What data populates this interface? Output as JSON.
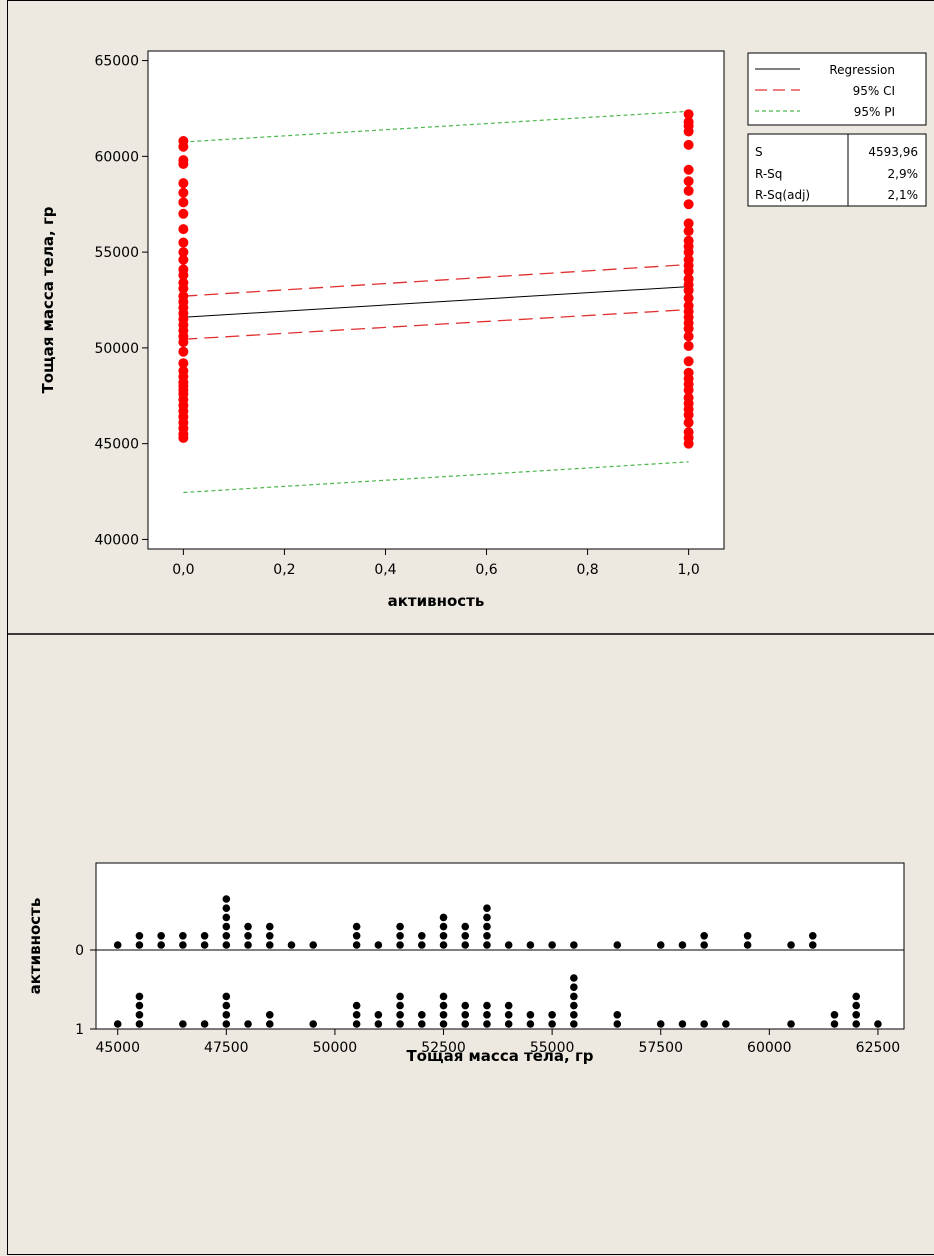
{
  "chart_data": [
    {
      "type": "scatter",
      "title": "",
      "xlabel": "активность",
      "ylabel": "Тощая масса тела, гр",
      "xlim": [
        -0.07,
        1.07
      ],
      "ylim": [
        39500,
        65500
      ],
      "x_ticks": [
        0.0,
        0.2,
        0.4,
        0.6,
        0.8,
        1.0
      ],
      "x_tick_labels": [
        "0,0",
        "0,2",
        "0,4",
        "0,6",
        "0,8",
        "1,0"
      ],
      "y_ticks": [
        40000,
        45000,
        50000,
        55000,
        60000,
        65000
      ],
      "y_tick_labels": [
        "40000",
        "45000",
        "50000",
        "55000",
        "60000",
        "65000"
      ],
      "colors": {
        "points": "#ff0000",
        "regression": "#000000",
        "ci": "#e03030",
        "pi": "#4cb84c"
      },
      "legend": {
        "position": "top-right",
        "entries": [
          {
            "label": "Regression",
            "style": "solid",
            "color": "#000000"
          },
          {
            "label": "95% CI",
            "style": "dashed",
            "color": "#e03030"
          },
          {
            "label": "95% PI",
            "style": "dashed",
            "color": "#4cb84c"
          }
        ]
      },
      "stats": [
        {
          "label": "S",
          "value": "4593,96"
        },
        {
          "label": "R-Sq",
          "value": "2,9%"
        },
        {
          "label": "R-Sq(adj)",
          "value": "2,1%"
        }
      ],
      "lines": {
        "regression": [
          [
            0,
            51600
          ],
          [
            1,
            53200
          ]
        ],
        "ci_upper": [
          [
            0,
            52700
          ],
          [
            1,
            54350
          ]
        ],
        "ci_lower": [
          [
            0,
            50450
          ],
          [
            1,
            52000
          ]
        ],
        "pi_upper": [
          [
            0,
            60750
          ],
          [
            1,
            62350
          ]
        ],
        "pi_lower": [
          [
            0,
            42450
          ],
          [
            1,
            44050
          ]
        ]
      },
      "series": [
        {
          "x": 0,
          "values": [
            45300,
            45500,
            45800,
            46100,
            46400,
            46700,
            47000,
            47300,
            47600,
            47800,
            48000,
            48200,
            48500,
            48800,
            49200,
            49800,
            50300,
            50600,
            50900,
            51200,
            51500,
            51800,
            52100,
            52400,
            52700,
            53100,
            53400,
            53800,
            54100,
            54600,
            55000,
            55500,
            56200,
            57000,
            57600,
            58100,
            58600,
            59600,
            59800,
            60500,
            60800
          ]
        },
        {
          "x": 1,
          "values": [
            45000,
            45300,
            45600,
            46100,
            46500,
            46800,
            47100,
            47400,
            47800,
            48100,
            48400,
            48700,
            49300,
            50100,
            50600,
            51000,
            51300,
            51600,
            51900,
            52200,
            52600,
            53000,
            53300,
            53600,
            54000,
            54300,
            54600,
            55000,
            55300,
            55600,
            56100,
            56500,
            57500,
            58200,
            58700,
            59300,
            60600,
            61300,
            61600,
            61800,
            62200
          ]
        }
      ]
    },
    {
      "type": "scatter",
      "title": "",
      "xlabel": "Тощая масса тела, гр",
      "ylabel": "активность",
      "xlim": [
        44500,
        63100
      ],
      "x_ticks": [
        45000,
        47500,
        50000,
        52500,
        55000,
        57500,
        60000,
        62500
      ],
      "x_tick_labels": [
        "45000",
        "47500",
        "50000",
        "52500",
        "55000",
        "57500",
        "60000",
        "62500"
      ],
      "groups": [
        "0",
        "1"
      ],
      "dot_color": "#000000",
      "series": [
        {
          "name": "0",
          "bins": [
            [
              45000,
              1
            ],
            [
              45500,
              2
            ],
            [
              46000,
              2
            ],
            [
              46500,
              2
            ],
            [
              47000,
              2
            ],
            [
              47500,
              6
            ],
            [
              48000,
              3
            ],
            [
              48500,
              3
            ],
            [
              49000,
              1
            ],
            [
              49500,
              1
            ],
            [
              50500,
              3
            ],
            [
              51000,
              1
            ],
            [
              51500,
              3
            ],
            [
              52000,
              2
            ],
            [
              52500,
              4
            ],
            [
              53000,
              3
            ],
            [
              53500,
              5
            ],
            [
              54000,
              1
            ],
            [
              54500,
              1
            ],
            [
              55000,
              1
            ],
            [
              55500,
              1
            ],
            [
              56500,
              1
            ],
            [
              57500,
              1
            ],
            [
              58000,
              1
            ],
            [
              58500,
              2
            ],
            [
              59500,
              2
            ],
            [
              60500,
              1
            ],
            [
              61000,
              2
            ]
          ]
        },
        {
          "name": "1",
          "bins": [
            [
              45000,
              1
            ],
            [
              45500,
              4
            ],
            [
              46500,
              1
            ],
            [
              47000,
              1
            ],
            [
              47500,
              4
            ],
            [
              48000,
              1
            ],
            [
              48500,
              2
            ],
            [
              49500,
              1
            ],
            [
              50500,
              3
            ],
            [
              51000,
              2
            ],
            [
              51500,
              4
            ],
            [
              52000,
              2
            ],
            [
              52500,
              4
            ],
            [
              53000,
              3
            ],
            [
              53500,
              3
            ],
            [
              54000,
              3
            ],
            [
              54500,
              2
            ],
            [
              55000,
              2
            ],
            [
              55500,
              6
            ],
            [
              56500,
              2
            ],
            [
              57500,
              1
            ],
            [
              58000,
              1
            ],
            [
              58500,
              1
            ],
            [
              59000,
              1
            ],
            [
              60500,
              1
            ],
            [
              61500,
              2
            ],
            [
              62000,
              4
            ],
            [
              62500,
              1
            ]
          ]
        }
      ]
    }
  ]
}
